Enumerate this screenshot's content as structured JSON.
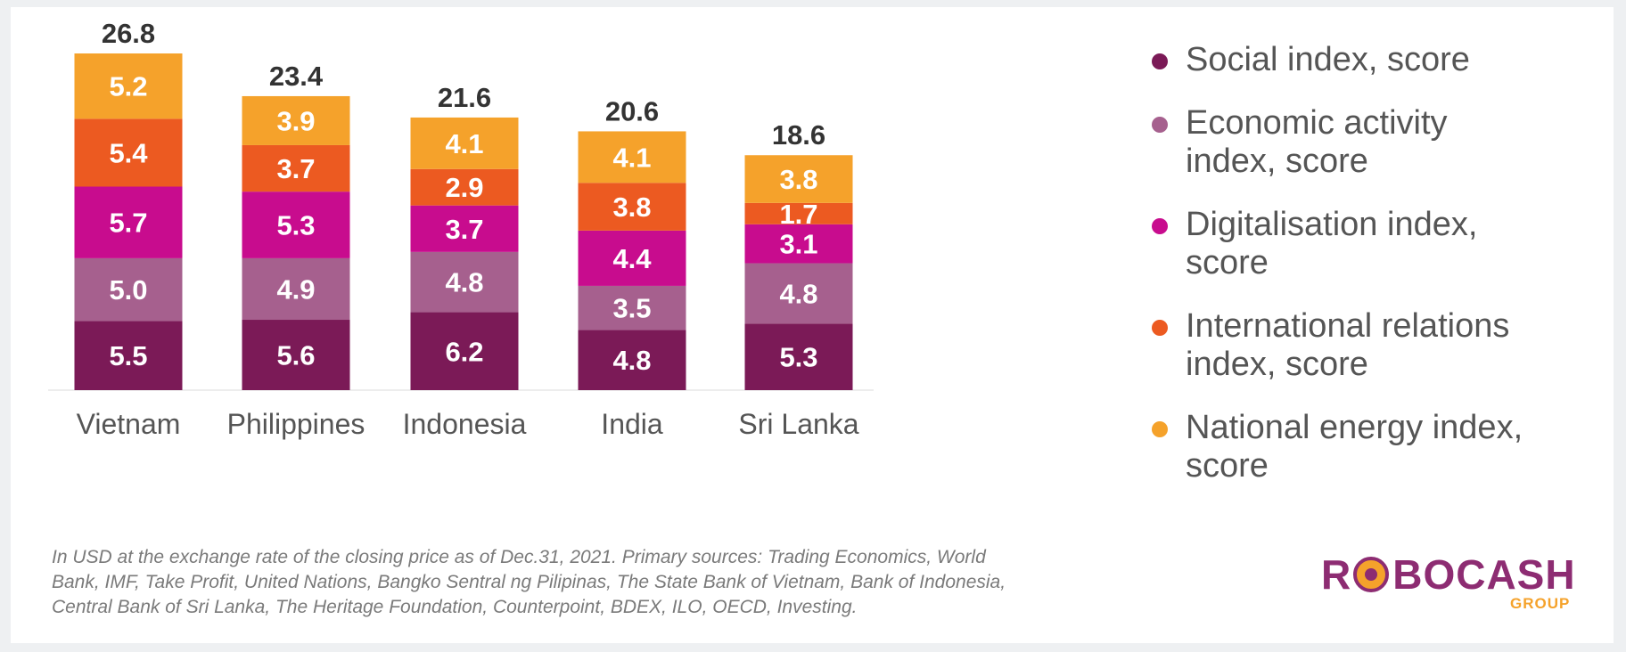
{
  "colors": {
    "social": "#7b1a57",
    "economic": "#a6608e",
    "digital": "#c80c8e",
    "international": "#ec5a21",
    "energy": "#f5a22b"
  },
  "chart_data": {
    "type": "bar",
    "stacked": true,
    "categories": [
      "Vietnam",
      "Philippines",
      "Indonesia",
      "India",
      "Sri Lanka"
    ],
    "totals": [
      "26.8",
      "23.4",
      "21.6",
      "20.6",
      "18.6"
    ],
    "series": [
      {
        "name": "Social index, score",
        "values": [
          5.5,
          5.6,
          6.2,
          4.8,
          5.3
        ],
        "labels": [
          "5.5",
          "5.6",
          "6.2",
          "4.8",
          "5.3"
        ],
        "color": "#7b1a57"
      },
      {
        "name": "Economic activity index, score",
        "values": [
          5.0,
          4.9,
          4.8,
          3.5,
          4.8
        ],
        "labels": [
          "5.0",
          "4.9",
          "4.8",
          "3.5",
          "4.8"
        ],
        "color": "#a6608e"
      },
      {
        "name": "Digitalisation index, score",
        "values": [
          5.7,
          5.3,
          3.7,
          4.4,
          3.1
        ],
        "labels": [
          "5.7",
          "5.3",
          "3.7",
          "4.4",
          "3.1"
        ],
        "color": "#c80c8e"
      },
      {
        "name": "International relations index, score",
        "values": [
          5.4,
          3.7,
          2.9,
          3.8,
          1.7
        ],
        "labels": [
          "5.4",
          "3.7",
          "2.9",
          "3.8",
          "1.7"
        ],
        "color": "#ec5a21"
      },
      {
        "name": "National energy index, score",
        "values": [
          5.2,
          3.9,
          4.1,
          4.1,
          3.8
        ],
        "labels": [
          "5.2",
          "3.9",
          "4.1",
          "4.1",
          "3.8"
        ],
        "color": "#f5a22b"
      }
    ],
    "ylim": [
      0,
      26.8
    ],
    "grid": false,
    "legend_position": "right"
  },
  "legend": {
    "items": [
      {
        "label_line1": "Social index, score",
        "label_line2": "",
        "color": "#7b1a57"
      },
      {
        "label_line1": "Economic activity",
        "label_line2": "index, score",
        "color": "#a6608e"
      },
      {
        "label_line1": "Digitalisation index,",
        "label_line2": "score",
        "color": "#c80c8e"
      },
      {
        "label_line1": "International relations",
        "label_line2": "index, score",
        "color": "#ec5a21"
      },
      {
        "label_line1": "National energy index,",
        "label_line2": "score",
        "color": "#f5a22b"
      }
    ]
  },
  "footnote": {
    "line1": "In USD at the exchange rate of the closing price as of Dec.31, 2021. Primary sources: Trading Economics, World",
    "line2": "Bank, IMF, Take Profit, United Nations, Bangko Sentral ng Pilipinas, The State Bank of Vietnam, Bank of Indonesia,",
    "line3": "Central Bank of Sri Lanka, The Heritage Foundation, Counterpoint, BDEX, ILO, OECD, Investing."
  },
  "logo": {
    "left_text": "R",
    "right_text": "BOCASH",
    "sub_text": "GROUP"
  }
}
